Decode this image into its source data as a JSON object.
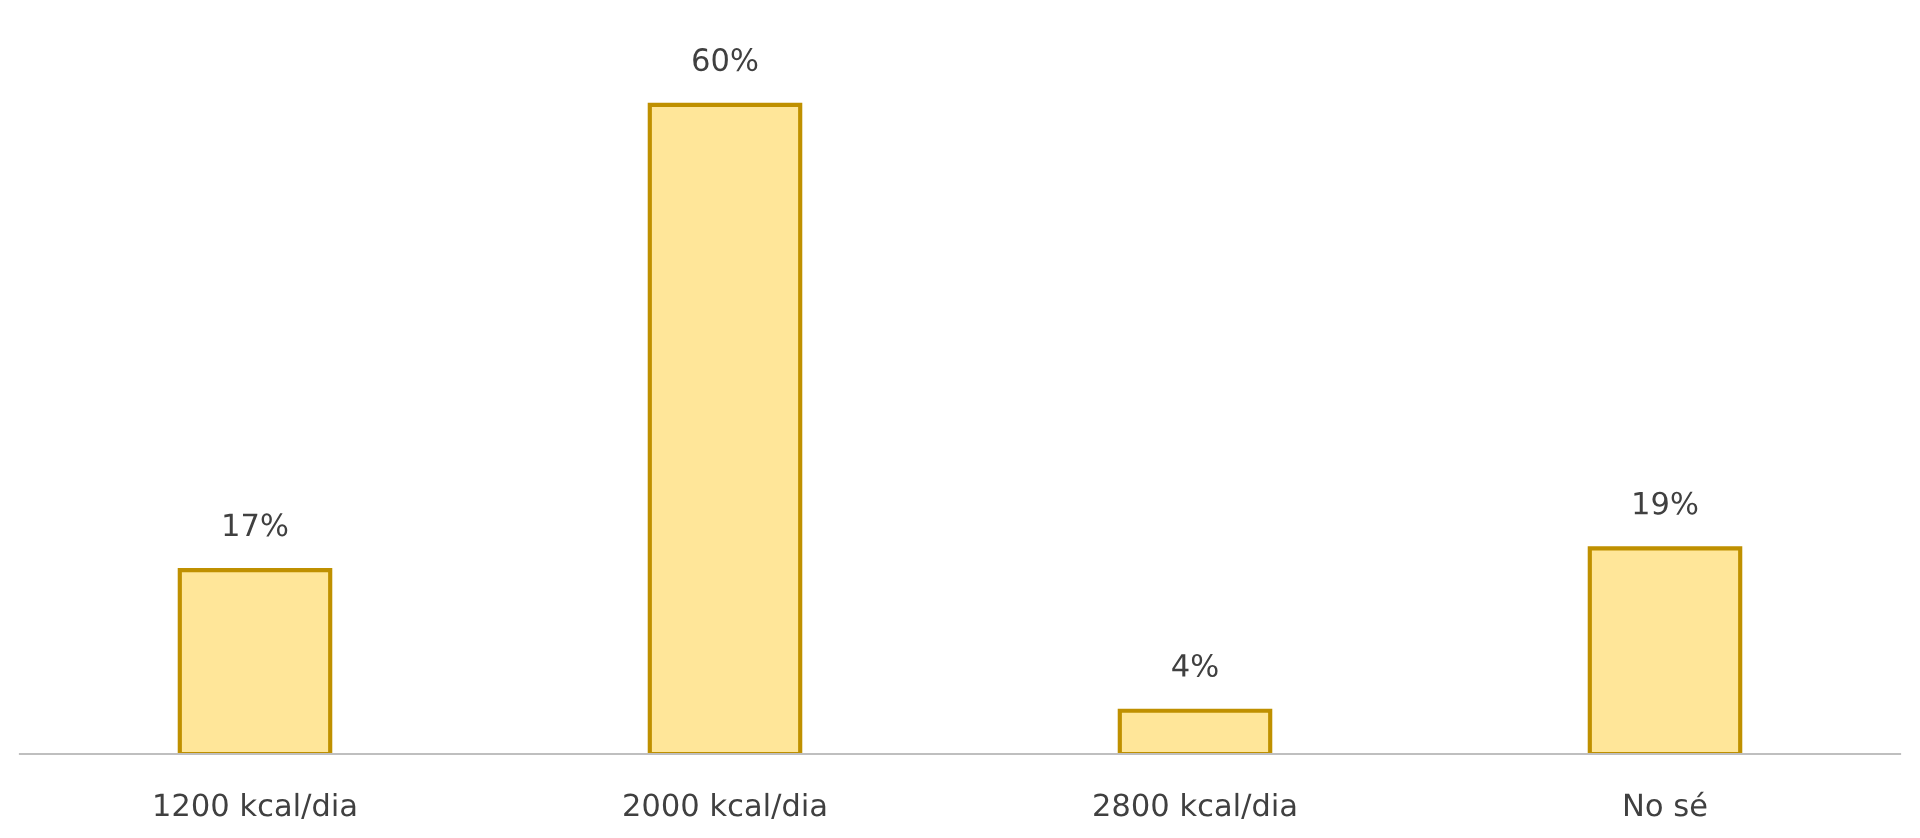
{
  "chart_data": {
    "type": "bar",
    "categories": [
      "1200 kcal/dia",
      "2000 kcal/dia",
      "2800 kcal/dia",
      "No sé"
    ],
    "values": [
      17,
      60,
      4,
      19
    ],
    "value_labels": [
      "17%",
      "60%",
      "4%",
      "19%"
    ],
    "color": "#ffe699",
    "grid": false,
    "legend": false
  }
}
